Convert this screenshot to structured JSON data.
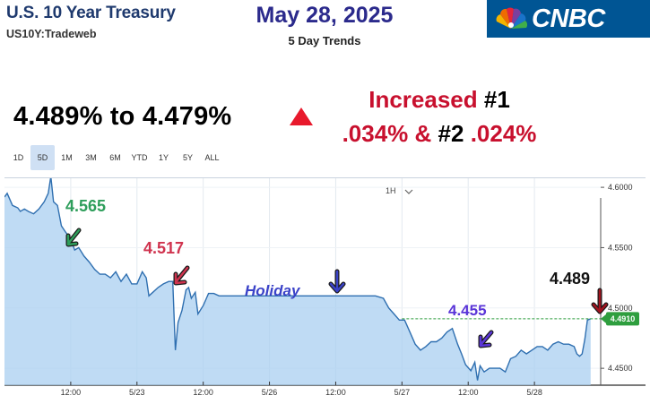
{
  "header": {
    "title": "U.S. 10 Year Treasury",
    "subtitle": "US10Y:Tradeweb",
    "date": "May 28, 2025",
    "trend_label": "5 Day Trends",
    "logo_text": "CNBC"
  },
  "summary": {
    "range": "4.489% to 4.479%",
    "increased_prefix": "Increased",
    "increased_rank1": "#1",
    "increased_value1": ".034% &",
    "increased_rank2": "#2",
    "increased_value2": ".024%"
  },
  "tabs": [
    "1D",
    "5D",
    "1M",
    "3M",
    "6M",
    "YTD",
    "1Y",
    "5Y",
    "ALL"
  ],
  "active_tab": "5D",
  "interval": "1H",
  "colors": {
    "title": "#1f3a6e",
    "date": "#2b2a8c",
    "increase": "#c8102e",
    "line": "#2f6fb0",
    "area": "#a9cff0",
    "current_price": "#2e9e3e",
    "label_green": "#2e9e5b",
    "label_red": "#d0344f",
    "label_purple": "#5a35d8",
    "holiday": "#3a42c8",
    "cnbc_blue": "#005594"
  },
  "annotations": {
    "high": "4.565",
    "peak2": "4.517",
    "holiday": "Holiday",
    "low": "4.455",
    "last": "4.489"
  },
  "chart_data": {
    "type": "area",
    "title": "",
    "xlabel": "",
    "ylabel": "",
    "ylim": [
      4.436,
      4.6075
    ],
    "y_ticks": [
      "4.6000",
      "4.5500",
      "4.5000",
      "4.4500"
    ],
    "y_tick_values": [
      4.6,
      4.55,
      4.5,
      4.45
    ],
    "x_ticks": [
      "12:00",
      "5/23",
      "12:00",
      "5/26",
      "12:00",
      "5/27",
      "12:00",
      "5/28"
    ],
    "x_tick_positions": [
      2.5,
      5,
      7.5,
      10,
      12.5,
      15,
      17.5,
      20
    ],
    "x_range": [
      0,
      22.5
    ],
    "current_value": "4.4910",
    "current_value_num": 4.491,
    "grid": true,
    "series": [
      {
        "values": [
          [
            0.0,
            4.592
          ],
          [
            0.1,
            4.595
          ],
          [
            0.3,
            4.585
          ],
          [
            0.5,
            4.583
          ],
          [
            0.6,
            4.58
          ],
          [
            0.75,
            4.582
          ],
          [
            0.9,
            4.58
          ],
          [
            1.1,
            4.578
          ],
          [
            1.3,
            4.582
          ],
          [
            1.5,
            4.588
          ],
          [
            1.65,
            4.595
          ],
          [
            1.75,
            4.609
          ],
          [
            1.85,
            4.588
          ],
          [
            2.0,
            4.585
          ],
          [
            2.15,
            4.568
          ],
          [
            2.3,
            4.563
          ],
          [
            2.5,
            4.557
          ],
          [
            2.65,
            4.548
          ],
          [
            2.8,
            4.55
          ],
          [
            3.0,
            4.543
          ],
          [
            3.2,
            4.538
          ],
          [
            3.4,
            4.532
          ],
          [
            3.6,
            4.528
          ],
          [
            3.8,
            4.528
          ],
          [
            4.0,
            4.525
          ],
          [
            4.2,
            4.53
          ],
          [
            4.4,
            4.522
          ],
          [
            4.6,
            4.528
          ],
          [
            4.8,
            4.52
          ],
          [
            5.0,
            4.52
          ],
          [
            5.2,
            4.53
          ],
          [
            5.35,
            4.525
          ],
          [
            5.45,
            4.51
          ],
          [
            5.6,
            4.513
          ],
          [
            5.8,
            4.517
          ],
          [
            6.0,
            4.52
          ],
          [
            6.2,
            4.522
          ],
          [
            6.35,
            4.522
          ],
          [
            6.45,
            4.465
          ],
          [
            6.55,
            4.488
          ],
          [
            6.7,
            4.498
          ],
          [
            6.85,
            4.515
          ],
          [
            6.95,
            4.517
          ],
          [
            7.05,
            4.508
          ],
          [
            7.2,
            4.513
          ],
          [
            7.3,
            4.495
          ],
          [
            7.5,
            4.502
          ],
          [
            7.7,
            4.512
          ],
          [
            7.9,
            4.512
          ],
          [
            8.1,
            4.51
          ],
          [
            12.5,
            4.51
          ],
          [
            14.0,
            4.51
          ],
          [
            14.3,
            4.508
          ],
          [
            14.5,
            4.5
          ],
          [
            14.7,
            4.495
          ],
          [
            14.9,
            4.49
          ],
          [
            15.1,
            4.49
          ],
          [
            15.3,
            4.48
          ],
          [
            15.5,
            4.47
          ],
          [
            15.7,
            4.465
          ],
          [
            15.9,
            4.468
          ],
          [
            16.1,
            4.472
          ],
          [
            16.3,
            4.472
          ],
          [
            16.5,
            4.475
          ],
          [
            16.7,
            4.48
          ],
          [
            16.9,
            4.483
          ],
          [
            17.1,
            4.47
          ],
          [
            17.25,
            4.462
          ],
          [
            17.4,
            4.453
          ],
          [
            17.6,
            4.448
          ],
          [
            17.75,
            4.455
          ],
          [
            17.85,
            4.44
          ],
          [
            17.95,
            4.452
          ],
          [
            18.1,
            4.447
          ],
          [
            18.3,
            4.45
          ],
          [
            18.5,
            4.45
          ],
          [
            18.7,
            4.45
          ],
          [
            18.9,
            4.447
          ],
          [
            19.1,
            4.458
          ],
          [
            19.3,
            4.46
          ],
          [
            19.5,
            4.465
          ],
          [
            19.7,
            4.462
          ],
          [
            19.9,
            4.465
          ],
          [
            20.1,
            4.468
          ],
          [
            20.3,
            4.468
          ],
          [
            20.5,
            4.465
          ],
          [
            20.7,
            4.47
          ],
          [
            20.9,
            4.472
          ],
          [
            21.1,
            4.47
          ],
          [
            21.3,
            4.47
          ],
          [
            21.5,
            4.468
          ],
          [
            21.6,
            4.462
          ],
          [
            21.7,
            4.46
          ],
          [
            21.8,
            4.462
          ],
          [
            21.9,
            4.474
          ],
          [
            22.0,
            4.49
          ],
          [
            22.12,
            4.491
          ]
        ]
      }
    ]
  }
}
